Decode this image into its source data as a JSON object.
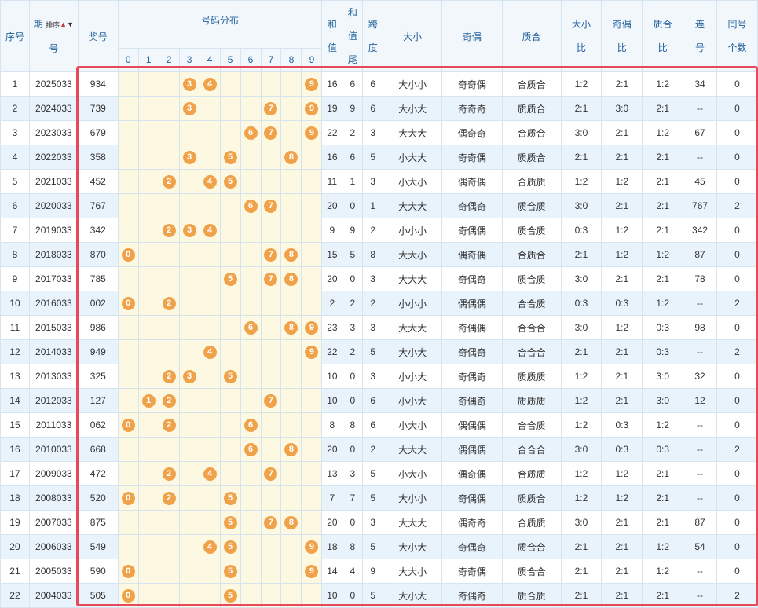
{
  "headers": {
    "index": "序号",
    "period_a": "期",
    "period_b": "号",
    "sort": "排序",
    "prize": "奖号",
    "distribution": "号码分布",
    "digits": [
      "0",
      "1",
      "2",
      "3",
      "4",
      "5",
      "6",
      "7",
      "8",
      "9"
    ],
    "sum_a": "和",
    "sum_b": "值",
    "sumtail_a": "和",
    "sumtail_b": "值",
    "sumtail_c": "尾",
    "span_a": "跨",
    "span_b": "度",
    "bigsmall": "大小",
    "oddeven": "奇偶",
    "primecomp": "质合",
    "bs_ratio_a": "大小",
    "bs_ratio_b": "比",
    "oe_ratio_a": "奇偶",
    "oe_ratio_b": "比",
    "pc_ratio_a": "质合",
    "pc_ratio_b": "比",
    "consec_a": "连",
    "consec_b": "号",
    "same_a": "同号",
    "same_b": "个数"
  },
  "rows": [
    {
      "idx": "1",
      "period": "2025033",
      "prize": "934",
      "balls": [
        "3",
        "4",
        "9"
      ],
      "sum": "16",
      "tail": "6",
      "span": "6",
      "bs": "大小小",
      "oe": "奇奇偶",
      "pc": "合质合",
      "bsr": "1:2",
      "oer": "2:1",
      "pcr": "1:2",
      "consec": "34",
      "same": "0"
    },
    {
      "idx": "2",
      "period": "2024033",
      "prize": "739",
      "balls": [
        "3",
        "7",
        "9"
      ],
      "sum": "19",
      "tail": "9",
      "span": "6",
      "bs": "大小大",
      "oe": "奇奇奇",
      "pc": "质质合",
      "bsr": "2:1",
      "oer": "3:0",
      "pcr": "2:1",
      "consec": "--",
      "same": "0"
    },
    {
      "idx": "3",
      "period": "2023033",
      "prize": "679",
      "balls": [
        "6",
        "7",
        "9"
      ],
      "sum": "22",
      "tail": "2",
      "span": "3",
      "bs": "大大大",
      "oe": "偶奇奇",
      "pc": "合质合",
      "bsr": "3:0",
      "oer": "2:1",
      "pcr": "1:2",
      "consec": "67",
      "same": "0"
    },
    {
      "idx": "4",
      "period": "2022033",
      "prize": "358",
      "balls": [
        "3",
        "5",
        "8"
      ],
      "sum": "16",
      "tail": "6",
      "span": "5",
      "bs": "小大大",
      "oe": "奇奇偶",
      "pc": "质质合",
      "bsr": "2:1",
      "oer": "2:1",
      "pcr": "2:1",
      "consec": "--",
      "same": "0"
    },
    {
      "idx": "5",
      "period": "2021033",
      "prize": "452",
      "balls": [
        "2",
        "4",
        "5"
      ],
      "sum": "11",
      "tail": "1",
      "span": "3",
      "bs": "小大小",
      "oe": "偶奇偶",
      "pc": "合质质",
      "bsr": "1:2",
      "oer": "1:2",
      "pcr": "2:1",
      "consec": "45",
      "same": "0"
    },
    {
      "idx": "6",
      "period": "2020033",
      "prize": "767",
      "balls": [
        "6",
        "7"
      ],
      "sum": "20",
      "tail": "0",
      "span": "1",
      "bs": "大大大",
      "oe": "奇偶奇",
      "pc": "质合质",
      "bsr": "3:0",
      "oer": "2:1",
      "pcr": "2:1",
      "consec": "767",
      "same": "2"
    },
    {
      "idx": "7",
      "period": "2019033",
      "prize": "342",
      "balls": [
        "2",
        "3",
        "4"
      ],
      "sum": "9",
      "tail": "9",
      "span": "2",
      "bs": "小小小",
      "oe": "奇偶偶",
      "pc": "质合质",
      "bsr": "0:3",
      "oer": "1:2",
      "pcr": "2:1",
      "consec": "342",
      "same": "0"
    },
    {
      "idx": "8",
      "period": "2018033",
      "prize": "870",
      "balls": [
        "0",
        "7",
        "8"
      ],
      "sum": "15",
      "tail": "5",
      "span": "8",
      "bs": "大大小",
      "oe": "偶奇偶",
      "pc": "合质合",
      "bsr": "2:1",
      "oer": "1:2",
      "pcr": "1:2",
      "consec": "87",
      "same": "0"
    },
    {
      "idx": "9",
      "period": "2017033",
      "prize": "785",
      "balls": [
        "5",
        "7",
        "8"
      ],
      "sum": "20",
      "tail": "0",
      "span": "3",
      "bs": "大大大",
      "oe": "奇偶奇",
      "pc": "质合质",
      "bsr": "3:0",
      "oer": "2:1",
      "pcr": "2:1",
      "consec": "78",
      "same": "0"
    },
    {
      "idx": "10",
      "period": "2016033",
      "prize": "002",
      "balls": [
        "0",
        "2"
      ],
      "sum": "2",
      "tail": "2",
      "span": "2",
      "bs": "小小小",
      "oe": "偶偶偶",
      "pc": "合合质",
      "bsr": "0:3",
      "oer": "0:3",
      "pcr": "1:2",
      "consec": "--",
      "same": "2"
    },
    {
      "idx": "11",
      "period": "2015033",
      "prize": "986",
      "balls": [
        "6",
        "8",
        "9"
      ],
      "sum": "23",
      "tail": "3",
      "span": "3",
      "bs": "大大大",
      "oe": "奇偶偶",
      "pc": "合合合",
      "bsr": "3:0",
      "oer": "1:2",
      "pcr": "0:3",
      "consec": "98",
      "same": "0"
    },
    {
      "idx": "12",
      "period": "2014033",
      "prize": "949",
      "balls": [
        "4",
        "9"
      ],
      "sum": "22",
      "tail": "2",
      "span": "5",
      "bs": "大小大",
      "oe": "奇偶奇",
      "pc": "合合合",
      "bsr": "2:1",
      "oer": "2:1",
      "pcr": "0:3",
      "consec": "--",
      "same": "2"
    },
    {
      "idx": "13",
      "period": "2013033",
      "prize": "325",
      "balls": [
        "2",
        "3",
        "5"
      ],
      "sum": "10",
      "tail": "0",
      "span": "3",
      "bs": "小小大",
      "oe": "奇偶奇",
      "pc": "质质质",
      "bsr": "1:2",
      "oer": "2:1",
      "pcr": "3:0",
      "consec": "32",
      "same": "0"
    },
    {
      "idx": "14",
      "period": "2012033",
      "prize": "127",
      "balls": [
        "1",
        "2",
        "7"
      ],
      "sum": "10",
      "tail": "0",
      "span": "6",
      "bs": "小小大",
      "oe": "奇偶奇",
      "pc": "质质质",
      "bsr": "1:2",
      "oer": "2:1",
      "pcr": "3:0",
      "consec": "12",
      "same": "0"
    },
    {
      "idx": "15",
      "period": "2011033",
      "prize": "062",
      "balls": [
        "0",
        "2",
        "6"
      ],
      "sum": "8",
      "tail": "8",
      "span": "6",
      "bs": "小大小",
      "oe": "偶偶偶",
      "pc": "合合质",
      "bsr": "1:2",
      "oer": "0:3",
      "pcr": "1:2",
      "consec": "--",
      "same": "0"
    },
    {
      "idx": "16",
      "period": "2010033",
      "prize": "668",
      "balls": [
        "6",
        "8"
      ],
      "sum": "20",
      "tail": "0",
      "span": "2",
      "bs": "大大大",
      "oe": "偶偶偶",
      "pc": "合合合",
      "bsr": "3:0",
      "oer": "0:3",
      "pcr": "0:3",
      "consec": "--",
      "same": "2"
    },
    {
      "idx": "17",
      "period": "2009033",
      "prize": "472",
      "balls": [
        "2",
        "4",
        "7"
      ],
      "sum": "13",
      "tail": "3",
      "span": "5",
      "bs": "小大小",
      "oe": "偶奇偶",
      "pc": "合质质",
      "bsr": "1:2",
      "oer": "1:2",
      "pcr": "2:1",
      "consec": "--",
      "same": "0"
    },
    {
      "idx": "18",
      "period": "2008033",
      "prize": "520",
      "balls": [
        "0",
        "2",
        "5"
      ],
      "sum": "7",
      "tail": "7",
      "span": "5",
      "bs": "大小小",
      "oe": "奇偶偶",
      "pc": "质质合",
      "bsr": "1:2",
      "oer": "1:2",
      "pcr": "2:1",
      "consec": "--",
      "same": "0"
    },
    {
      "idx": "19",
      "period": "2007033",
      "prize": "875",
      "balls": [
        "5",
        "7",
        "8"
      ],
      "sum": "20",
      "tail": "0",
      "span": "3",
      "bs": "大大大",
      "oe": "偶奇奇",
      "pc": "合质质",
      "bsr": "3:0",
      "oer": "2:1",
      "pcr": "2:1",
      "consec": "87",
      "same": "0"
    },
    {
      "idx": "20",
      "period": "2006033",
      "prize": "549",
      "balls": [
        "4",
        "5",
        "9"
      ],
      "sum": "18",
      "tail": "8",
      "span": "5",
      "bs": "大小大",
      "oe": "奇偶奇",
      "pc": "质合合",
      "bsr": "2:1",
      "oer": "2:1",
      "pcr": "1:2",
      "consec": "54",
      "same": "0"
    },
    {
      "idx": "21",
      "period": "2005033",
      "prize": "590",
      "balls": [
        "0",
        "5",
        "9"
      ],
      "sum": "14",
      "tail": "4",
      "span": "9",
      "bs": "大大小",
      "oe": "奇奇偶",
      "pc": "质合合",
      "bsr": "2:1",
      "oer": "2:1",
      "pcr": "1:2",
      "consec": "--",
      "same": "0"
    },
    {
      "idx": "22",
      "period": "2004033",
      "prize": "505",
      "balls": [
        "0",
        "5"
      ],
      "sum": "10",
      "tail": "0",
      "span": "5",
      "bs": "大小大",
      "oe": "奇偶奇",
      "pc": "质合质",
      "bsr": "2:1",
      "oer": "2:1",
      "pcr": "2:1",
      "consec": "--",
      "same": "2"
    }
  ],
  "colors": {
    "ball": "#f0a24a",
    "distribution_bg": "#fdf8e1",
    "header_bg": "#f2f7fc",
    "header_text": "#1f5f9a",
    "row_alt_bg": "#e8f3fc",
    "highlight_frame": "#e8495a"
  }
}
